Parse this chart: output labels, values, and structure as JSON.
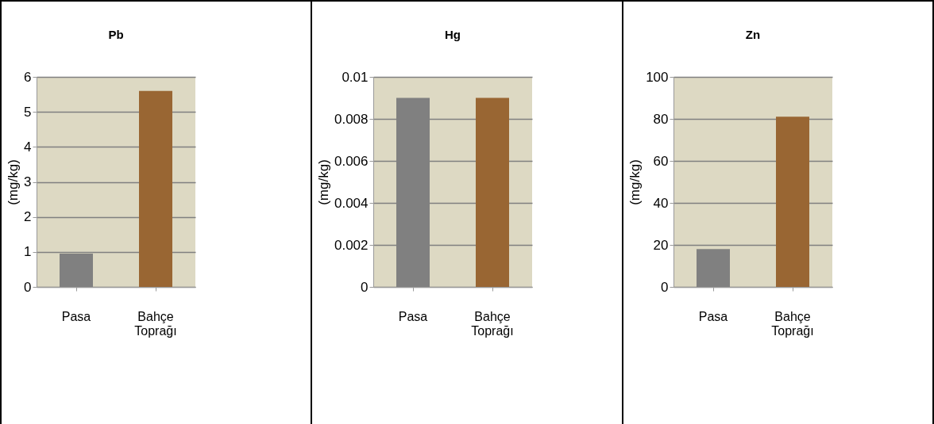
{
  "chart_data": [
    {
      "type": "bar",
      "title": "Pb",
      "ylabel": "(mg/kg)",
      "categories": [
        "Pasa",
        "Bahçe Toprağı"
      ],
      "values": [
        0.95,
        5.6
      ],
      "colors": [
        "#808080",
        "#996633"
      ],
      "ylim": [
        0,
        6
      ],
      "yticks": [
        0,
        1,
        2,
        3,
        4,
        5,
        6
      ],
      "grid": "y"
    },
    {
      "type": "bar",
      "title": "Hg",
      "ylabel": "(mg/kg)",
      "categories": [
        "Pasa",
        "Bahçe Toprağı"
      ],
      "values": [
        0.009,
        0.009
      ],
      "colors": [
        "#808080",
        "#996633"
      ],
      "ylim": [
        0,
        0.01
      ],
      "yticks": [
        0,
        0.002,
        0.004,
        0.006,
        0.008,
        0.01
      ],
      "grid": "y"
    },
    {
      "type": "bar",
      "title": "Zn",
      "ylabel": "(mg/kg)",
      "categories": [
        "Pasa",
        "Bahçe Toprağı"
      ],
      "values": [
        18,
        81
      ],
      "colors": [
        "#808080",
        "#996633"
      ],
      "ylim": [
        0,
        100
      ],
      "yticks": [
        0,
        20,
        40,
        60,
        80,
        100
      ],
      "grid": "y"
    }
  ]
}
